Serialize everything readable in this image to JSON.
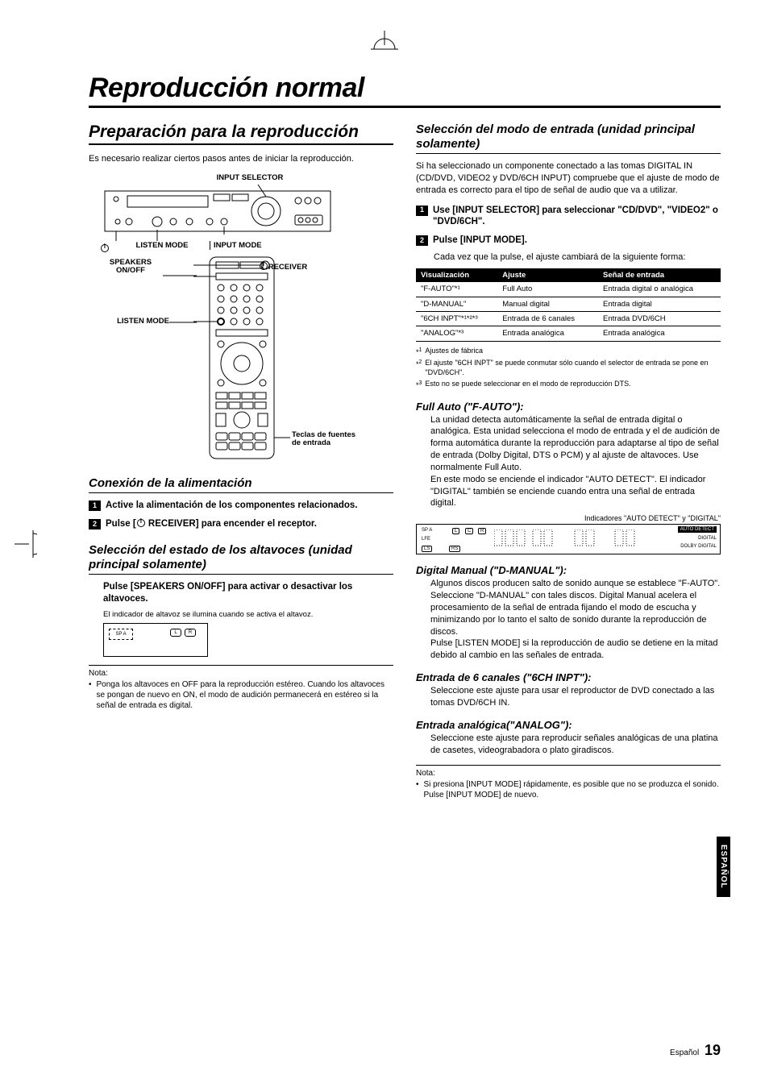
{
  "page_title": "Reproducción normal",
  "left": {
    "h2": "Preparación para la reproducción",
    "intro": "Es necesario realizar ciertos pasos antes de iniciar la reproducción.",
    "diagram_labels": {
      "input_selector": "INPUT SELECTOR",
      "listen_mode_top": "LISTEN MODE",
      "input_mode": "INPUT MODE",
      "speakers": "SPEAKERS\nON/OFF",
      "receiver": "RECEIVER",
      "listen_mode_side": "LISTEN MODE",
      "teclas": "Teclas de fuentes\nde entrada"
    },
    "sec1_h3": "Conexión de la alimentación",
    "sec1_step1": "Active la alimentación de los componentes relacionados.",
    "sec1_step2_pre": "Pulse [",
    "sec1_step2_post": " RECEIVER] para encender el receptor.",
    "sec2_h3": "Selección del estado de los altavoces (unidad principal solamente)",
    "sec2_step": "Pulse [SPEAKERS ON/OFF] para activar o desactivar los altavoces.",
    "sec2_cap": "El indicador de altavoz se ilumina cuando se activa el altavoz.",
    "mini_sp": "SP A",
    "mini_l": "L",
    "mini_r": "R",
    "note_t": "Nota:",
    "note_b": "Ponga los altavoces en OFF para la reproducción estéreo. Cuando los altavoces se pongan de nuevo en ON, el modo de audición permanecerá en estéreo si la señal de entrada es digital."
  },
  "right": {
    "h3_1": "Selección del modo de entrada (unidad principal solamente)",
    "intro1": "Si ha seleccionado un componente conectado a las tomas DIGITAL IN (CD/DVD, VIDEO2 y DVD/6CH INPUT) compruebe que el ajuste de modo de entrada es correcto para el tipo de señal de audio que va a utilizar.",
    "step1": "Use [INPUT SELECTOR] para seleccionar \"CD/DVD\", \"VIDEO2\" o \"DVD/6CH\".",
    "step2": "Pulse [INPUT MODE].",
    "step2_sub": "Cada vez que la pulse, el ajuste cambiará de la siguiente forma:",
    "table": {
      "headers": [
        "Visualización",
        "Ajuste",
        "Señal de entrada"
      ],
      "rows": [
        [
          "\"F-AUTO\"*¹",
          "Full Auto",
          "Entrada digital o analógica"
        ],
        [
          "\"D-MANUAL\"",
          "Manual digital",
          "Entrada digital"
        ],
        [
          "\"6CH INPT\"*¹*²*³",
          "Entrada de 6 canales",
          "Entrada DVD/6CH"
        ],
        [
          "\"ANALOG\"*³",
          "Entrada analógica",
          "Entrada analógica"
        ]
      ]
    },
    "fns": [
      "Ajustes de fábrica",
      "El ajuste \"6CH INPT\" se puede conmutar sólo cuando el selector de entrada se pone en \"DVD/6CH\".",
      "Esto no se puede seleccionar en el modo de reproducción DTS."
    ],
    "fa_h": "Full Auto (\"F-AUTO\"):",
    "fa_b": "La unidad detecta automáticamente la señal de entrada digital o analógica. Esta unidad selecciona el modo de entrada y el de audición de forma automática durante la reproducción para adaptarse al tipo de señal de entrada (Dolby Digital, DTS o PCM) y al ajuste de altavoces. Use normalmente Full Auto.\nEn este modo se enciende el indicador \"AUTO DETECT\". El indicador \"DIGITAL\" también se enciende cuando entra una señal de entrada digital.",
    "fa_cap": "Indicadores \"AUTO DETECT\" y \"DIGITAL\"",
    "disp_labels": {
      "spa": "SP A",
      "lfe": "LFE",
      "ls": "LS",
      "l": "L",
      "c": "C",
      "r": "R",
      "rs": "RS",
      "auto": "AUTO DETECT",
      "dig": "DIGITAL",
      "dd": "DOLBY DIGITAL"
    },
    "dm_h": "Digital Manual (\"D-MANUAL\"):",
    "dm_b": "Algunos discos producen salto de sonido aunque se establece \"F-AUTO\". Seleccione \"D-MANUAL\" con tales discos. Digital Manual acelera el procesamiento de la señal de entrada fijando el modo de escucha y minimizando por lo tanto el salto de sonido durante la reproducción de discos.\nPulse [LISTEN MODE] si la reproducción de audio se detiene en la mitad debido al cambio en las señales de entrada.",
    "ch_h": "Entrada de 6 canales (\"6CH INPT\"):",
    "ch_b": "Seleccione este ajuste para usar el reproductor de DVD conectado a las tomas DVD/6CH IN.",
    "an_h": "Entrada analógica(\"ANALOG\"):",
    "an_b": "Seleccione este ajuste para reproducir señales analógicas de una platina de casetes, videograbadora o plato giradiscos.",
    "note_t": "Nota:",
    "note_b": "Si presiona [INPUT MODE] rápidamente, es posible que no se produzca el sonido.  Pulse [INPUT MODE] de nuevo."
  },
  "lang_tab": "ESPAÑOL",
  "footer_lang": "Español",
  "footer_page": "19"
}
